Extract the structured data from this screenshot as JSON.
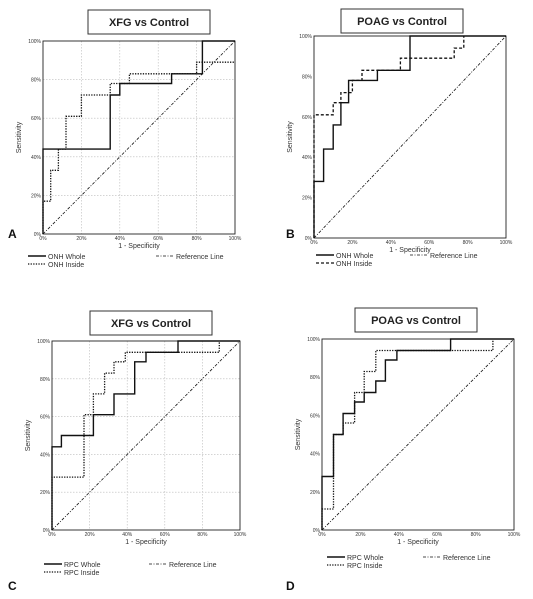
{
  "chart_data": [
    {
      "type": "line",
      "panel_label": "A",
      "title": "XFG vs Control",
      "xlabel": "1 - Specificity",
      "ylabel": "Sensitivity",
      "xlim": [
        0,
        1
      ],
      "ylim": [
        0,
        1
      ],
      "ticks": [
        "0%",
        "20%",
        "40%",
        "60%",
        "80%",
        "100%"
      ],
      "grid": true,
      "series": [
        {
          "name": "ONH Whole",
          "style": "solid",
          "x": [
            0,
            0,
            0.35,
            0.35,
            0.4,
            0.4,
            0.67,
            0.67,
            0.83,
            0.83,
            1.0
          ],
          "y": [
            0,
            0.44,
            0.44,
            0.72,
            0.72,
            0.78,
            0.78,
            0.83,
            0.83,
            1.0,
            1.0
          ]
        },
        {
          "name": "ONH Inside",
          "style": "dotted",
          "x": [
            0,
            0,
            0.04,
            0.04,
            0.08,
            0.08,
            0.12,
            0.12,
            0.2,
            0.2,
            0.35,
            0.35,
            0.45,
            0.45,
            0.55,
            0.55,
            0.8,
            0.8,
            0.88,
            0.88,
            1.0
          ],
          "y": [
            0,
            0.17,
            0.17,
            0.33,
            0.33,
            0.44,
            0.44,
            0.61,
            0.61,
            0.72,
            0.72,
            0.78,
            0.78,
            0.83,
            0.83,
            0.83,
            0.83,
            0.89,
            0.89,
            0.89,
            0.89
          ]
        },
        {
          "name": "Reference Line",
          "style": "dash-dot",
          "x": [
            0,
            1
          ],
          "y": [
            0,
            1
          ]
        }
      ]
    },
    {
      "type": "line",
      "panel_label": "B",
      "title": "POAG vs Control",
      "xlabel": "1 - Specificity",
      "ylabel": "Sensitivity",
      "xlim": [
        0,
        1
      ],
      "ylim": [
        0,
        1
      ],
      "ticks": [
        "0%",
        "20%",
        "40%",
        "60%",
        "80%",
        "100%"
      ],
      "grid": false,
      "series": [
        {
          "name": "ONH Whole",
          "style": "solid",
          "x": [
            0,
            0,
            0.05,
            0.05,
            0.1,
            0.1,
            0.14,
            0.14,
            0.18,
            0.18,
            0.33,
            0.33,
            0.5,
            0.5,
            1.0
          ],
          "y": [
            0,
            0.28,
            0.28,
            0.44,
            0.44,
            0.56,
            0.56,
            0.67,
            0.67,
            0.78,
            0.78,
            0.83,
            0.83,
            1.0,
            1.0
          ]
        },
        {
          "name": "ONH Inside",
          "style": "dashed",
          "x": [
            0,
            0,
            0.1,
            0.1,
            0.14,
            0.14,
            0.2,
            0.2,
            0.25,
            0.25,
            0.45,
            0.45,
            0.6,
            0.6,
            0.73,
            0.73,
            0.78,
            0.78
          ],
          "y": [
            0,
            0.61,
            0.61,
            0.67,
            0.67,
            0.72,
            0.72,
            0.78,
            0.78,
            0.83,
            0.83,
            0.89,
            0.89,
            0.89,
            0.89,
            0.94,
            0.94,
            1.0
          ]
        },
        {
          "name": "Reference Line",
          "style": "dash-dot",
          "x": [
            0,
            1
          ],
          "y": [
            0,
            1
          ]
        }
      ]
    },
    {
      "type": "line",
      "panel_label": "C",
      "title": "XFG vs Control",
      "xlabel": "1 - Specificity",
      "ylabel": "Sensitivity",
      "xlim": [
        0,
        1
      ],
      "ylim": [
        0,
        1
      ],
      "ticks": [
        "0%",
        "20%",
        "40%",
        "60%",
        "80%",
        "100%"
      ],
      "grid": true,
      "series": [
        {
          "name": "RPC Whole",
          "style": "solid",
          "x": [
            0,
            0,
            0.05,
            0.05,
            0.17,
            0.17,
            0.22,
            0.22,
            0.33,
            0.33,
            0.44,
            0.44,
            0.5,
            0.5,
            0.67,
            0.67,
            1.0
          ],
          "y": [
            0,
            0.44,
            0.44,
            0.5,
            0.5,
            0.5,
            0.5,
            0.61,
            0.61,
            0.72,
            0.72,
            0.89,
            0.89,
            0.94,
            0.94,
            1.0,
            1.0
          ]
        },
        {
          "name": "RPC Inside",
          "style": "dotted",
          "x": [
            0,
            0,
            0.02,
            0.02,
            0.17,
            0.17,
            0.22,
            0.22,
            0.28,
            0.28,
            0.33,
            0.33,
            0.39,
            0.39,
            0.56,
            0.56,
            0.89,
            0.89
          ],
          "y": [
            0,
            0.28,
            0.28,
            0.28,
            0.28,
            0.61,
            0.61,
            0.72,
            0.72,
            0.83,
            0.83,
            0.89,
            0.89,
            0.94,
            0.94,
            0.94,
            0.94,
            1.0
          ]
        },
        {
          "name": "Reference Line",
          "style": "dash-dot",
          "x": [
            0,
            1
          ],
          "y": [
            0,
            1
          ]
        }
      ]
    },
    {
      "type": "line",
      "panel_label": "D",
      "title": "POAG vs Control",
      "xlabel": "1 - Specificity",
      "ylabel": "Sensitivity",
      "xlim": [
        0,
        1
      ],
      "ylim": [
        0,
        1
      ],
      "ticks": [
        "0%",
        "20%",
        "40%",
        "60%",
        "80%",
        "100%"
      ],
      "grid": false,
      "series": [
        {
          "name": "RPC Whole",
          "style": "solid",
          "x": [
            0,
            0,
            0.06,
            0.06,
            0.11,
            0.11,
            0.17,
            0.17,
            0.22,
            0.22,
            0.28,
            0.28,
            0.33,
            0.33,
            0.39,
            0.39,
            0.67,
            0.67,
            1.0
          ],
          "y": [
            0,
            0.28,
            0.28,
            0.5,
            0.5,
            0.61,
            0.61,
            0.67,
            0.67,
            0.72,
            0.72,
            0.78,
            0.78,
            0.89,
            0.89,
            0.94,
            0.94,
            1.0,
            1.0
          ]
        },
        {
          "name": "RPC Inside",
          "style": "dotted",
          "x": [
            0,
            0,
            0.06,
            0.06,
            0.11,
            0.11,
            0.17,
            0.17,
            0.22,
            0.22,
            0.28,
            0.28,
            0.39,
            0.39,
            0.83,
            0.83,
            0.89,
            0.89
          ],
          "y": [
            0,
            0.11,
            0.11,
            0.5,
            0.5,
            0.56,
            0.56,
            0.72,
            0.72,
            0.83,
            0.83,
            0.94,
            0.94,
            0.94,
            0.94,
            0.94,
            0.94,
            1.0
          ]
        },
        {
          "name": "Reference Line",
          "style": "dash-dot",
          "x": [
            0,
            1
          ],
          "y": [
            0,
            1
          ]
        }
      ]
    }
  ]
}
